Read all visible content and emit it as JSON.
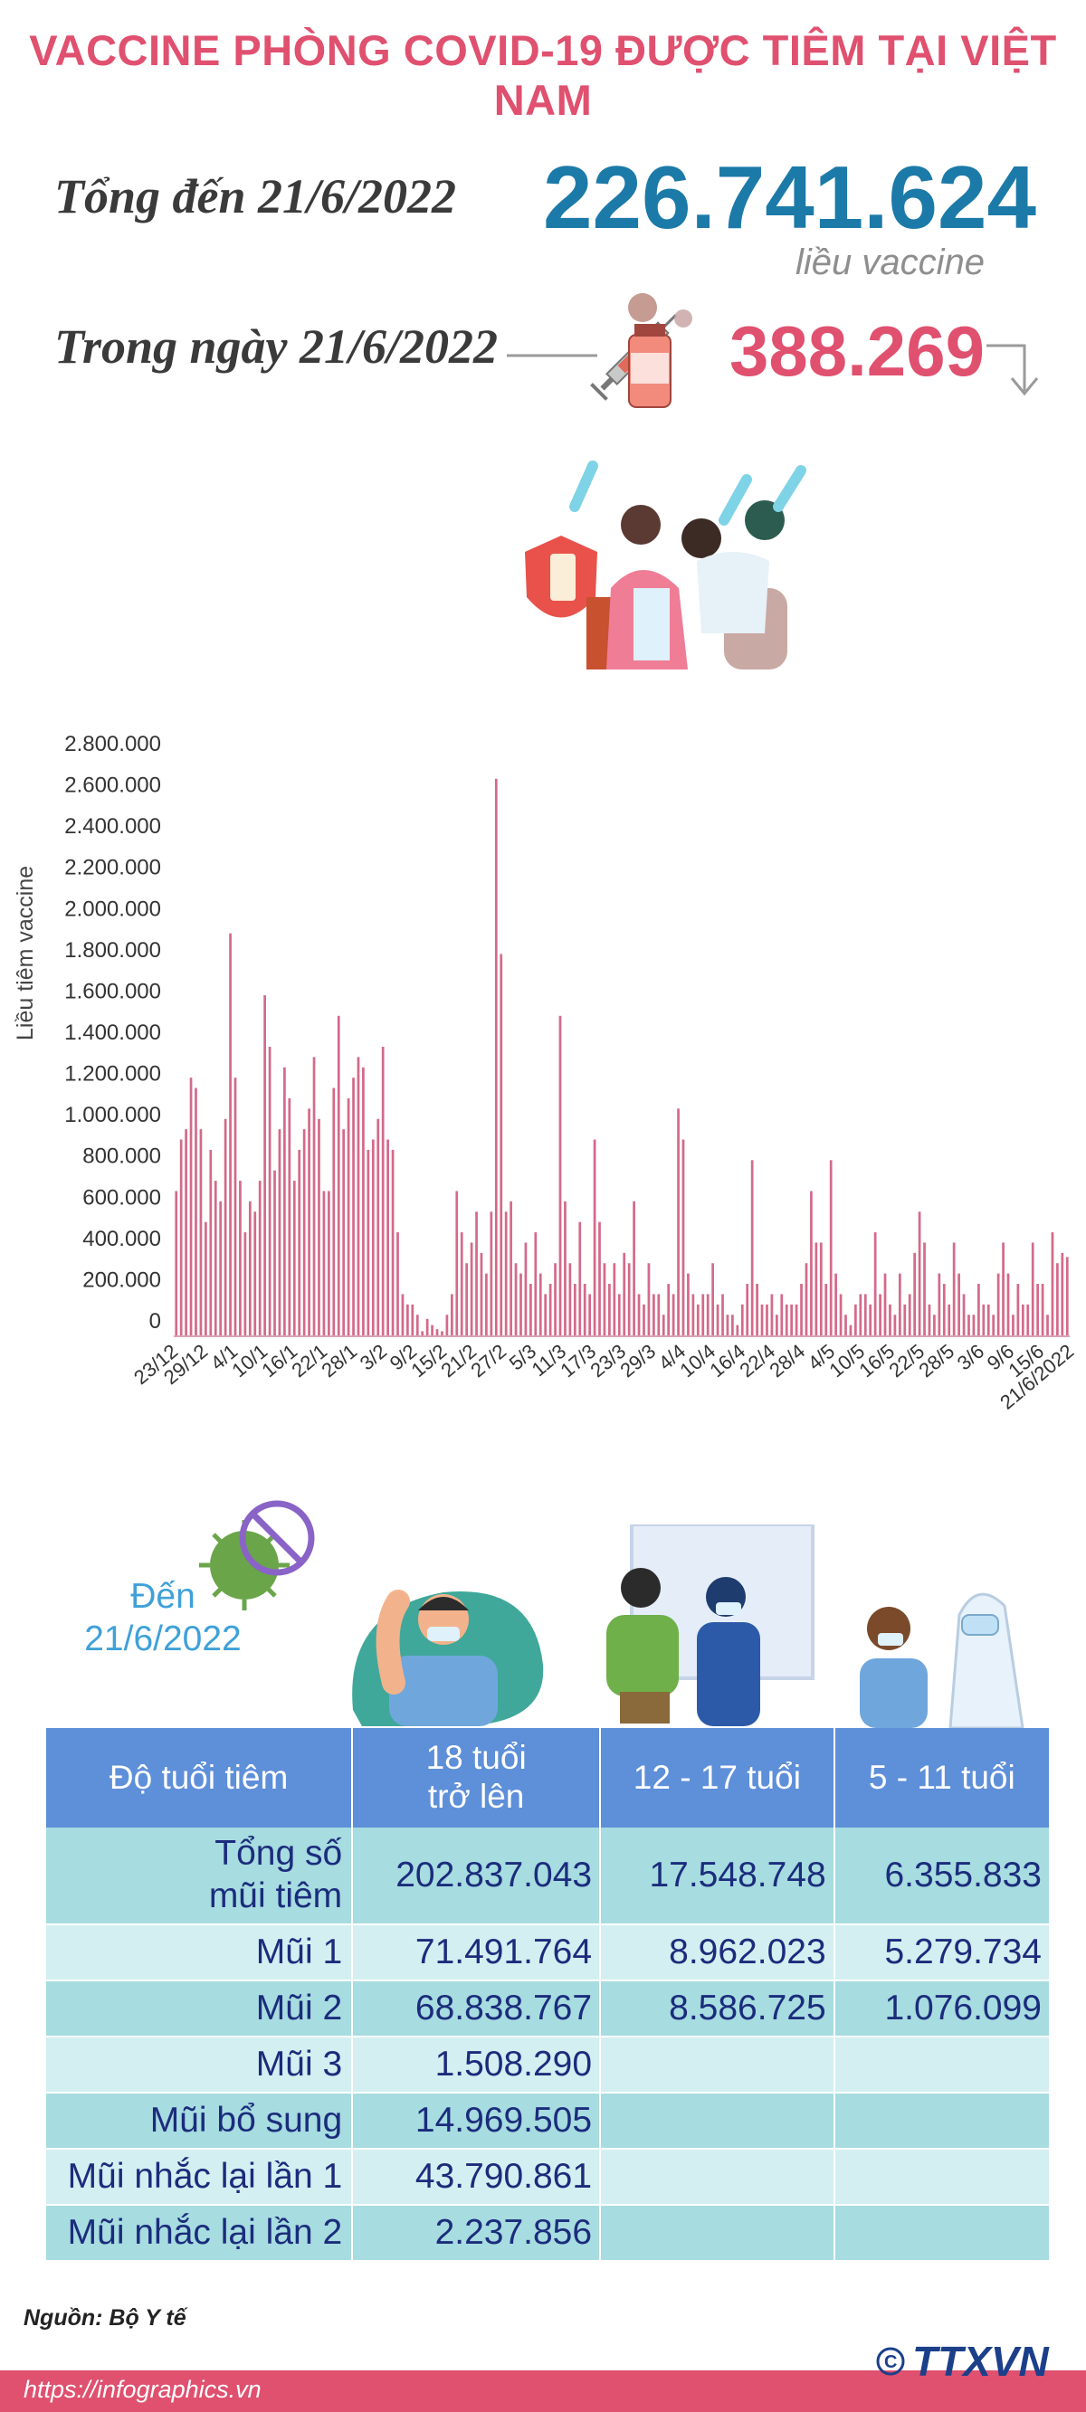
{
  "title": "VACCINE PHÒNG COVID-19 ĐƯỢC TIÊM TẠI VIỆT NAM",
  "summary": {
    "total_label": "Tổng đến 21/6/2022",
    "total_value": "226.741.624",
    "total_unit": "liều vaccine",
    "day_label": "Trong ngày 21/6/2022",
    "day_value": "388.269"
  },
  "colors": {
    "title": "#e0506f",
    "total": "#1c7aa8",
    "bar": "#d36a8a",
    "table_header": "#5e8fd9",
    "table_dark": "#a7dce0",
    "table_light": "#d4eff1",
    "table_text": "#1b2c7c"
  },
  "chart_data": {
    "type": "bar",
    "ylabel": "Liều tiêm vaccine",
    "ylim": [
      0,
      2800000
    ],
    "yticks": [
      "0",
      "200.000",
      "400.000",
      "600.000",
      "800.000",
      "1.000.000",
      "1.200.000",
      "1.400.000",
      "1.600.000",
      "1.800.000",
      "2.000.000",
      "2.200.000",
      "2.400.000",
      "2.600.000",
      "2.800.000"
    ],
    "xtick_labels": [
      "23/12",
      "29/12",
      "4/1",
      "10/1",
      "16/1",
      "22/1",
      "28/1",
      "3/2",
      "9/2",
      "15/2",
      "21/2",
      "27/2",
      "5/3",
      "11/3",
      "17/3",
      "23/3",
      "29/3",
      "4/4",
      "10/4",
      "16/4",
      "22/4",
      "28/4",
      "4/5",
      "10/5",
      "16/5",
      "22/5",
      "28/5",
      "3/6",
      "9/6",
      "15/6",
      "21/6/2022"
    ],
    "values": [
      700000,
      950000,
      1000000,
      1250000,
      1200000,
      1000000,
      550000,
      900000,
      750000,
      650000,
      1050000,
      1950000,
      1250000,
      750000,
      500000,
      650000,
      600000,
      750000,
      1650000,
      1400000,
      800000,
      1000000,
      1300000,
      1150000,
      750000,
      900000,
      1000000,
      1100000,
      1350000,
      1050000,
      700000,
      700000,
      1200000,
      1550000,
      1000000,
      1150000,
      1250000,
      1350000,
      1300000,
      900000,
      950000,
      1050000,
      1400000,
      950000,
      900000,
      500000,
      200000,
      150000,
      150000,
      100000,
      20000,
      80000,
      50000,
      30000,
      20000,
      100000,
      200000,
      700000,
      500000,
      350000,
      450000,
      600000,
      400000,
      300000,
      600000,
      2700000,
      1850000,
      600000,
      650000,
      350000,
      300000,
      450000,
      250000,
      500000,
      300000,
      200000,
      250000,
      350000,
      1550000,
      650000,
      350000,
      250000,
      550000,
      250000,
      200000,
      950000,
      550000,
      350000,
      250000,
      350000,
      200000,
      400000,
      350000,
      650000,
      200000,
      150000,
      350000,
      200000,
      200000,
      100000,
      250000,
      200000,
      1100000,
      950000,
      300000,
      200000,
      150000,
      200000,
      200000,
      350000,
      150000,
      200000,
      100000,
      100000,
      50000,
      150000,
      250000,
      850000,
      250000,
      150000,
      150000,
      200000,
      100000,
      200000,
      150000,
      150000,
      150000,
      250000,
      350000,
      700000,
      450000,
      450000,
      250000,
      850000,
      300000,
      200000,
      100000,
      50000,
      150000,
      200000,
      200000,
      150000,
      500000,
      200000,
      300000,
      150000,
      100000,
      300000,
      150000,
      200000,
      400000,
      600000,
      450000,
      150000,
      100000,
      300000,
      250000,
      150000,
      450000,
      300000,
      200000,
      100000,
      100000,
      250000,
      150000,
      150000,
      100000,
      300000,
      450000,
      300000,
      100000,
      250000,
      150000,
      150000,
      450000,
      250000,
      250000,
      100000,
      500000,
      350000,
      400000,
      380000
    ]
  },
  "as_of": {
    "line1": "Đến",
    "line2": "21/6/2022"
  },
  "table": {
    "headers": [
      "Độ tuổi tiêm",
      "18 tuổi trở lên",
      "12 - 17 tuổi",
      "5 - 11 tuổi"
    ],
    "rows": [
      {
        "label": "Tổng số mũi tiêm",
        "v18": "202.837.043",
        "v12": "17.548.748",
        "v5": "6.355.833"
      },
      {
        "label": "Mũi 1",
        "v18": "71.491.764",
        "v12": "8.962.023",
        "v5": "5.279.734"
      },
      {
        "label": "Mũi 2",
        "v18": "68.838.767",
        "v12": "8.586.725",
        "v5": "1.076.099"
      },
      {
        "label": "Mũi 3",
        "v18": "1.508.290",
        "v12": "",
        "v5": ""
      },
      {
        "label": "Mũi bổ sung",
        "v18": "14.969.505",
        "v12": "",
        "v5": ""
      },
      {
        "label": "Mũi nhắc lại lần 1",
        "v18": "43.790.861",
        "v12": "",
        "v5": ""
      },
      {
        "label": "Mũi nhắc lại lần 2",
        "v18": "2.237.856",
        "v12": "",
        "v5": ""
      }
    ]
  },
  "source": "Nguồn: Bộ Y tế",
  "url": "https://infographics.vn",
  "logo_text": "TTXVN",
  "icons": [
    "syringe-vial-icon",
    "virus-icon",
    "people-celebrating-illustration",
    "vaccinated-man-illustration",
    "nurse-vaccination-illustration",
    "child-vaccination-illustration",
    "down-arrow-icon"
  ]
}
